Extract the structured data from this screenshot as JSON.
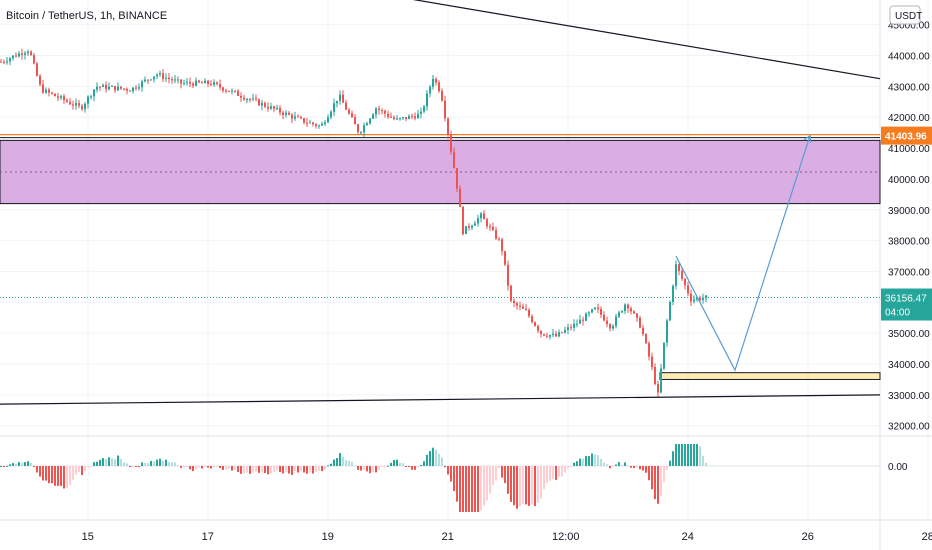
{
  "title": "Bitcoin / TetherUS, 1h, BINANCE",
  "currency": "USDT",
  "chart_data": {
    "type": "candlestick",
    "y_ticks": [
      "45000.00",
      "44000.00",
      "43000.00",
      "42000.00",
      "41000.00",
      "40000.00",
      "39000.00",
      "38000.00",
      "37000.00",
      "36000.00",
      "35000.00",
      "34000.00",
      "33000.00",
      "32000.00"
    ],
    "y_tick_values": [
      45000,
      44000,
      43000,
      42000,
      41000,
      40000,
      39000,
      38000,
      37000,
      36000,
      35000,
      34000,
      33000,
      32000
    ],
    "ylim": [
      31700,
      45800
    ],
    "x_ticks": [
      "15",
      "17",
      "19",
      "21",
      "12:00",
      "24",
      "26",
      "28"
    ],
    "x_tick_index": [
      88,
      208,
      328,
      448,
      568,
      688,
      808,
      928
    ],
    "x_range": [
      0,
      940
    ],
    "price_labels": [
      {
        "name": "resistance-price-label",
        "text": "41403.96",
        "value": 41403.96,
        "color": "#f57c1f"
      },
      {
        "name": "last-price-label",
        "text": "36156.47",
        "value": 36156.47,
        "color": "#26a69a"
      },
      {
        "name": "countdown-label",
        "text": "04:00",
        "color": "#26a69a"
      }
    ],
    "support_zone": {
      "y_top": 41250,
      "y_bottom": 39200,
      "color": "#ce93d8"
    },
    "resistance_line": {
      "y": 41403.96,
      "color": "#f57c1f"
    },
    "support_box": {
      "x_start": 660,
      "x_end": 880,
      "y_top": 33720,
      "y_bottom": 33500,
      "color": "#ffe082"
    },
    "trendlines": [
      {
        "name": "upper-trendline",
        "x1": 307,
        "y1": 46400,
        "x2": 880,
        "y2": 43250
      },
      {
        "name": "lower-trendline",
        "x1": 0,
        "y1": 32700,
        "x2": 880,
        "y2": 33000
      }
    ],
    "projection_path": [
      [
        676,
        37500
      ],
      [
        735,
        33800
      ],
      [
        810,
        41400
      ]
    ],
    "osc_zero_label": "0.00",
    "candles_seed_points": [
      [
        0,
        43800
      ],
      [
        28,
        44200
      ],
      [
        40,
        42900
      ],
      [
        80,
        42300
      ],
      [
        95,
        43000
      ],
      [
        130,
        42900
      ],
      [
        155,
        43400
      ],
      [
        180,
        43100
      ],
      [
        210,
        43100
      ],
      [
        240,
        42700
      ],
      [
        270,
        42300
      ],
      [
        300,
        41900
      ],
      [
        320,
        41700
      ],
      [
        338,
        42700
      ],
      [
        358,
        41500
      ],
      [
        375,
        42300
      ],
      [
        395,
        41900
      ],
      [
        420,
        42100
      ],
      [
        432,
        43300
      ],
      [
        440,
        42800
      ],
      [
        448,
        41300
      ],
      [
        455,
        40000
      ],
      [
        462,
        38300
      ],
      [
        480,
        38800
      ],
      [
        500,
        37900
      ],
      [
        510,
        36000
      ],
      [
        525,
        35700
      ],
      [
        540,
        35000
      ],
      [
        555,
        34900
      ],
      [
        575,
        35300
      ],
      [
        595,
        35800
      ],
      [
        610,
        35200
      ],
      [
        625,
        36000
      ],
      [
        640,
        35200
      ],
      [
        650,
        34000
      ],
      [
        657,
        33000
      ],
      [
        665,
        35200
      ],
      [
        675,
        37200
      ],
      [
        690,
        36100
      ],
      [
        705,
        36150
      ]
    ]
  }
}
